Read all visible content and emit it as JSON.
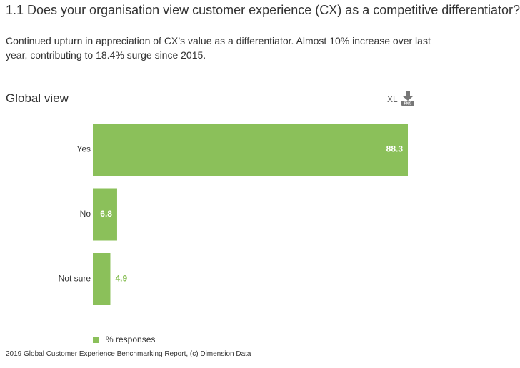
{
  "header": {
    "title": "1.1 Does your organisation view customer experience (CX) as a competitive differentiator?",
    "subtitle": "Continued upturn in appreciation of CX’s value as a differentiator. Almost 10% increase over last year, contributing to 18.4% surge since 2015.",
    "section": "Global view"
  },
  "toolbar": {
    "xl": "XL",
    "png": "PNG"
  },
  "chart_data": {
    "type": "hbar",
    "categories": [
      "Yes",
      "No",
      "Not sure"
    ],
    "series": [
      {
        "name": "% responses",
        "color": "#8bc05a",
        "values": [
          88.3,
          6.8,
          4.9
        ]
      }
    ],
    "xlim": [
      0,
      88.3
    ]
  },
  "footer": "2019 Global Customer Experience Benchmarking Report, (c) Dimension Data"
}
